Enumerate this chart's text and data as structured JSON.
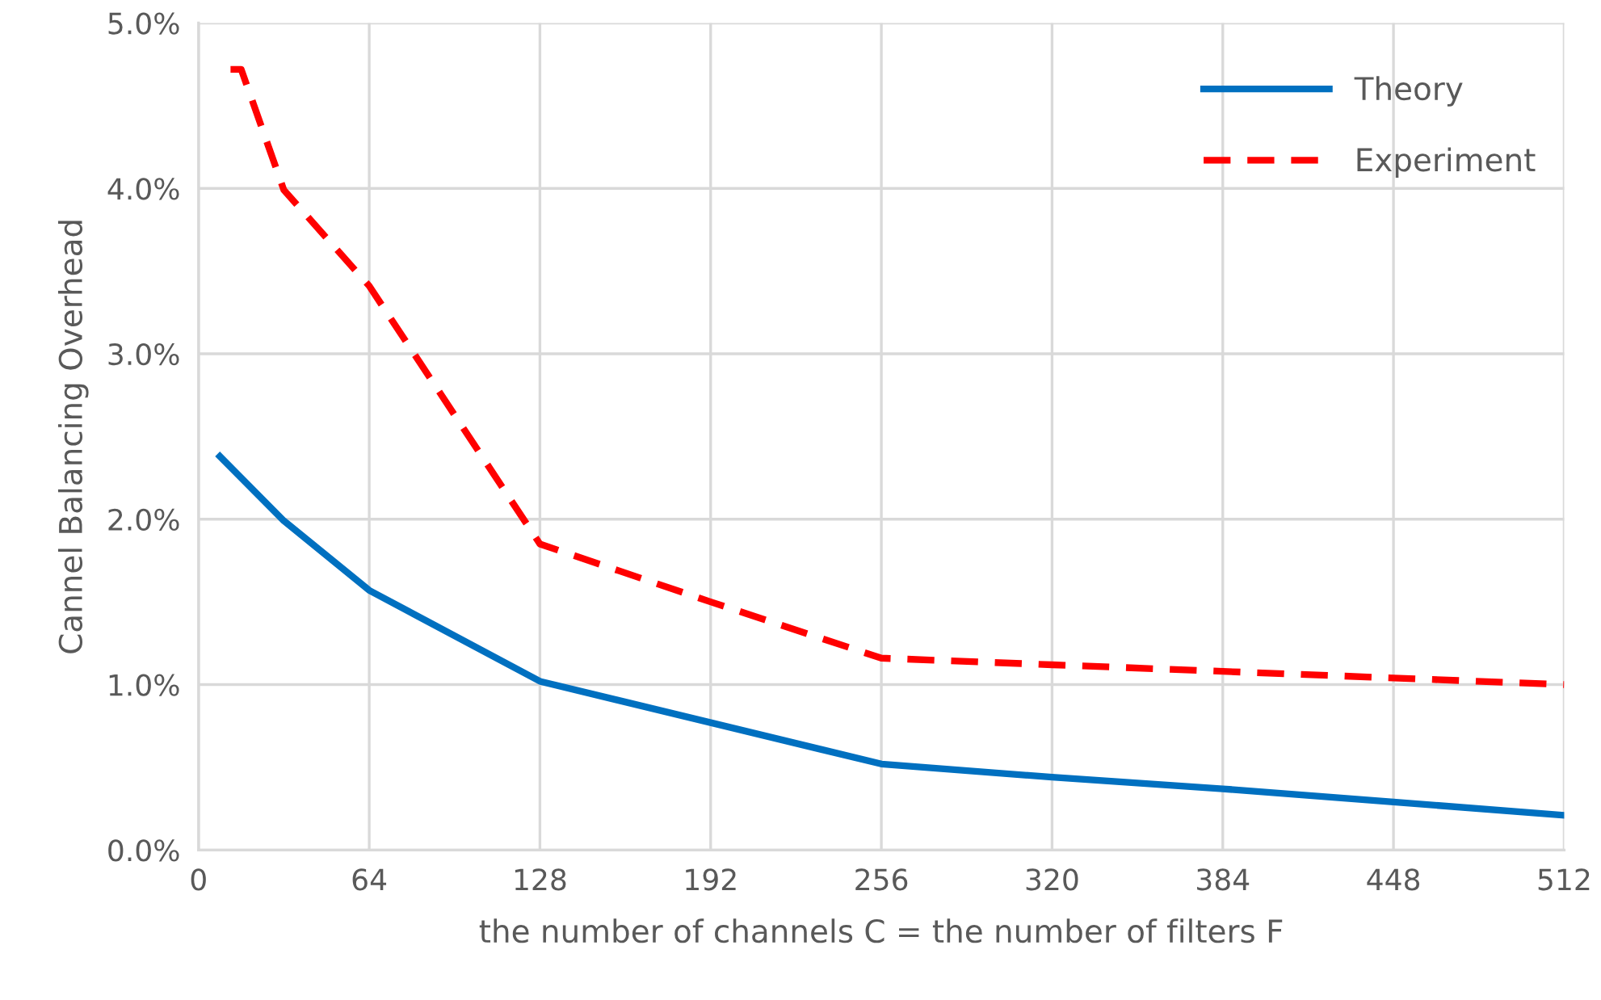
{
  "chart_data": {
    "type": "line",
    "xlabel": "the number of channels C = the number of filters F",
    "ylabel": "Cannel Balancing Overhead",
    "series": [
      {
        "name": "Theory",
        "color": "#0070c0",
        "line_style": "solid",
        "x": [
          8,
          32,
          64,
          128,
          192,
          256,
          320,
          384,
          448,
          512
        ],
        "values": [
          2.38,
          1.99,
          1.57,
          1.02,
          0.77,
          0.52,
          0.44,
          0.37,
          0.29,
          0.21
        ]
      },
      {
        "name": "Experiment",
        "color": "#ff0000",
        "line_style": "dashed",
        "x": [
          12,
          16,
          32,
          64,
          128,
          192,
          256,
          320,
          384,
          448,
          512
        ],
        "values": [
          4.72,
          4.72,
          3.99,
          3.41,
          1.85,
          1.5,
          1.16,
          1.12,
          1.08,
          1.04,
          1.0
        ]
      }
    ],
    "xlim": [
      0,
      512
    ],
    "xticks": [
      0,
      64,
      128,
      192,
      256,
      320,
      384,
      448,
      512
    ],
    "ylim": [
      0,
      5
    ],
    "yticks": [
      {
        "value": 0,
        "label": "0.0%"
      },
      {
        "value": 1,
        "label": "1.0%"
      },
      {
        "value": 2,
        "label": "2.0%"
      },
      {
        "value": 3,
        "label": "3.0%"
      },
      {
        "value": 4,
        "label": "4.0%"
      },
      {
        "value": 5,
        "label": "5.0%"
      }
    ],
    "grid": true,
    "legend": "top right",
    "marker": "none"
  }
}
